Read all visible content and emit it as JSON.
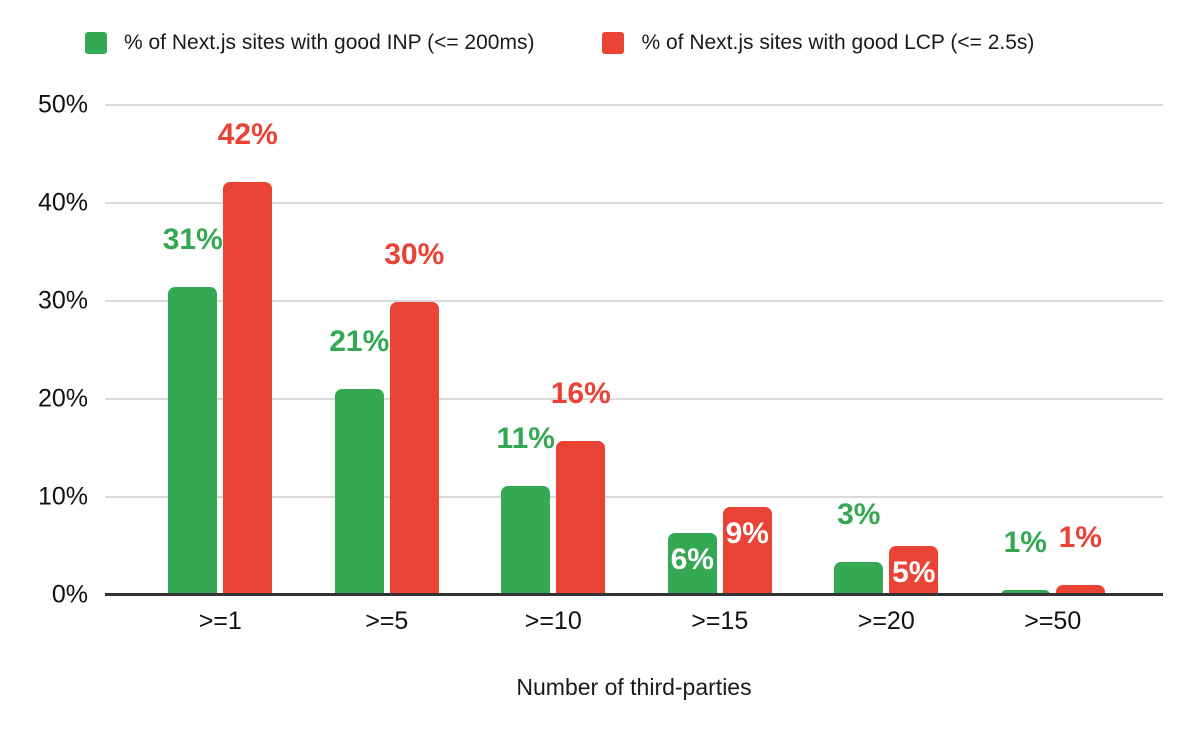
{
  "chart_data": {
    "type": "bar",
    "title": "",
    "xlabel": "Number of third-parties",
    "ylabel": "",
    "ylim": [
      0,
      50
    ],
    "y_tick_labels": [
      "0%",
      "10%",
      "20%",
      "30%",
      "40%",
      "50%"
    ],
    "categories": [
      ">=1",
      ">=5",
      ">=10",
      ">=15",
      ">=20",
      ">=50"
    ],
    "series": [
      {
        "id": "inp",
        "name": "% of Next.js sites with good INP (<= 200ms)",
        "color": "#34a853",
        "values": [
          31,
          21,
          11,
          6,
          3,
          1
        ],
        "value_labels": [
          "31%",
          "21%",
          "11%",
          "6%",
          "3%",
          "1%"
        ],
        "bar_height_pct_of_axis": [
          31.4,
          21.0,
          11.1,
          6.3,
          3.4,
          0.5
        ],
        "label_placement": [
          "above",
          "above",
          "above",
          "inside",
          "above",
          "above"
        ]
      },
      {
        "id": "lcp",
        "name": "% of Next.js sites with good LCP (<= 2.5s)",
        "color": "#ea4335",
        "values": [
          42,
          30,
          16,
          9,
          5,
          1
        ],
        "value_labels": [
          "42%",
          "30%",
          "16%",
          "9%",
          "5%",
          "1%"
        ],
        "bar_height_pct_of_axis": [
          42.1,
          29.9,
          15.7,
          9.0,
          5.0,
          1.0
        ],
        "label_placement": [
          "above",
          "above",
          "above",
          "inside",
          "inside",
          "above"
        ]
      }
    ],
    "legend_position": "top",
    "grid": true,
    "colors": {
      "grid_line": "#d9d9d9",
      "axis_line": "#333333",
      "tick_text": "#111111",
      "inside_label_text": "#ffffff",
      "background": "#ffffff"
    }
  }
}
